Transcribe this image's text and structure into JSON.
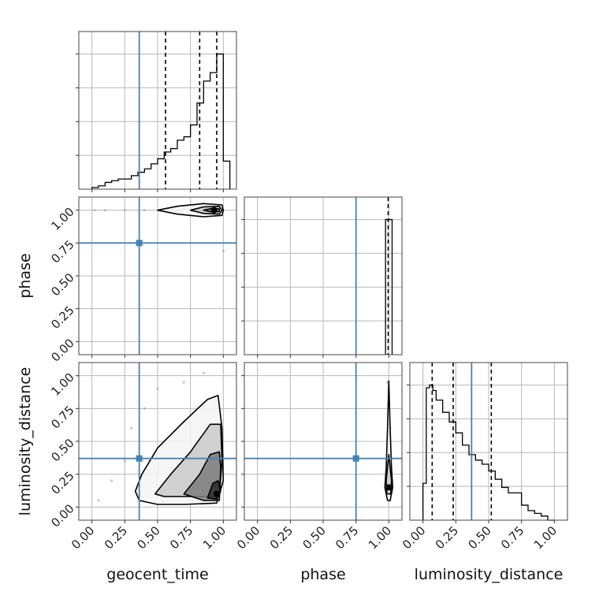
{
  "chart_data": {
    "type": "corner",
    "parameters": [
      "geocent_time",
      "phase",
      "luminosity_distance"
    ],
    "xlabels": [
      "geocent_time",
      "phase",
      "luminosity_distance"
    ],
    "ylabels": [
      "",
      "phase",
      "luminosity_distance"
    ],
    "ticks": [
      0.0,
      0.25,
      0.5,
      0.75,
      1.0
    ],
    "tick_labels": [
      "0.00",
      "0.25",
      "0.50",
      "0.75",
      "1.00"
    ],
    "axis_range": [
      -0.1,
      1.1
    ],
    "grid": true,
    "truths": {
      "geocent_time": 0.36,
      "phase": 0.75,
      "luminosity_distance": 0.37,
      "color": "#4682b4"
    },
    "quantiles": {
      "geocent_time": [
        0.56,
        0.82,
        0.95
      ],
      "phase": [
        0.995
      ],
      "luminosity_distance": [
        0.07,
        0.23,
        0.52
      ]
    },
    "histograms": {
      "geocent_time": {
        "bin_edges": [
          0.0,
          0.05,
          0.1,
          0.15,
          0.2,
          0.25,
          0.3,
          0.35,
          0.4,
          0.45,
          0.5,
          0.55,
          0.6,
          0.65,
          0.7,
          0.75,
          0.8,
          0.85,
          0.9,
          0.95,
          1.0,
          1.05
        ],
        "counts": [
          0.005,
          0.01,
          0.02,
          0.025,
          0.03,
          0.03,
          0.04,
          0.05,
          0.06,
          0.075,
          0.09,
          0.11,
          0.12,
          0.145,
          0.155,
          0.19,
          0.255,
          0.32,
          0.345,
          0.4,
          0.083
        ]
      },
      "phase": {
        "bin_edges": [
          0.975,
          1.0,
          1.025
        ],
        "counts": [
          1.0,
          1.0
        ]
      },
      "luminosity_distance": {
        "bin_edges": [
          0.0,
          0.025,
          0.05,
          0.075,
          0.1,
          0.15,
          0.2,
          0.25,
          0.3,
          0.35,
          0.4,
          0.45,
          0.5,
          0.55,
          0.6,
          0.65,
          0.7,
          0.75,
          0.8,
          0.85,
          0.9,
          0.95,
          1.0
        ],
        "counts": [
          0.27,
          0.97,
          0.99,
          0.95,
          0.88,
          0.79,
          0.72,
          0.64,
          0.55,
          0.48,
          0.44,
          0.41,
          0.36,
          0.3,
          0.24,
          0.2,
          0.2,
          0.11,
          0.07,
          0.05,
          0.03,
          0.0
        ]
      }
    },
    "density": {
      "phase_vs_geocent_time": {
        "x": "geocent_time",
        "y": "phase",
        "mode_x": 0.93,
        "mode_y": 1.0,
        "samples": [
          [
            0.02,
            1.0
          ],
          [
            0.1,
            1.0
          ],
          [
            0.25,
            1.0
          ],
          [
            0.4,
            1.0
          ],
          [
            0.55,
            1.0
          ],
          [
            0.65,
            1.0
          ],
          [
            0.7,
            1.01
          ],
          [
            0.75,
            0.99
          ],
          [
            0.85,
            1.0
          ],
          [
            0.95,
            1.01
          ],
          [
            1.0,
            0.69
          ]
        ],
        "contours": [
          [
            [
              0.5,
              1.0
            ],
            [
              0.65,
              1.03
            ],
            [
              0.85,
              1.05
            ],
            [
              0.99,
              1.04
            ],
            [
              1.0,
              1.0
            ],
            [
              0.99,
              0.96
            ],
            [
              0.85,
              0.95
            ],
            [
              0.65,
              0.97
            ],
            [
              0.5,
              1.0
            ]
          ],
          [
            [
              0.75,
              1.0
            ],
            [
              0.85,
              1.025
            ],
            [
              0.97,
              1.03
            ],
            [
              0.99,
              1.0
            ],
            [
              0.97,
              0.97
            ],
            [
              0.85,
              0.975
            ],
            [
              0.75,
              1.0
            ]
          ],
          [
            [
              0.85,
              1.0
            ],
            [
              0.92,
              1.015
            ],
            [
              0.97,
              1.01
            ],
            [
              0.97,
              0.99
            ],
            [
              0.92,
              0.985
            ],
            [
              0.85,
              1.0
            ]
          ]
        ]
      },
      "luminosity_distance_vs_geocent_time": {
        "x": "geocent_time",
        "y": "luminosity_distance",
        "mode_x": 0.95,
        "mode_y": 0.1,
        "samples": [
          [
            0.05,
            0.05
          ],
          [
            0.15,
            0.2
          ],
          [
            0.25,
            0.35
          ],
          [
            0.3,
            0.6
          ],
          [
            0.4,
            0.75
          ],
          [
            0.5,
            0.9
          ],
          [
            0.7,
            0.95
          ],
          [
            0.85,
            1.02
          ],
          [
            0.95,
            0.8
          ],
          [
            0.6,
            0.3
          ],
          [
            0.75,
            0.1
          ]
        ],
        "contours": [
          [
            [
              0.33,
              0.12
            ],
            [
              0.36,
              0.05
            ],
            [
              0.5,
              0.02
            ],
            [
              0.7,
              0.02
            ],
            [
              0.95,
              0.03
            ],
            [
              1.0,
              0.2
            ],
            [
              0.99,
              0.6
            ],
            [
              0.96,
              0.85
            ],
            [
              0.88,
              0.82
            ],
            [
              0.7,
              0.65
            ],
            [
              0.5,
              0.45
            ],
            [
              0.38,
              0.25
            ],
            [
              0.33,
              0.12
            ]
          ],
          [
            [
              0.48,
              0.1
            ],
            [
              0.55,
              0.08
            ],
            [
              0.75,
              0.08
            ],
            [
              0.97,
              0.08
            ],
            [
              0.99,
              0.35
            ],
            [
              0.98,
              0.63
            ],
            [
              0.9,
              0.63
            ],
            [
              0.75,
              0.42
            ],
            [
              0.6,
              0.25
            ],
            [
              0.48,
              0.1
            ]
          ],
          [
            [
              0.7,
              0.1
            ],
            [
              0.85,
              0.05
            ],
            [
              0.97,
              0.05
            ],
            [
              0.98,
              0.3
            ],
            [
              0.97,
              0.42
            ],
            [
              0.9,
              0.4
            ],
            [
              0.82,
              0.25
            ],
            [
              0.7,
              0.1
            ]
          ],
          [
            [
              0.88,
              0.07
            ],
            [
              0.95,
              0.06
            ],
            [
              0.98,
              0.12
            ],
            [
              0.96,
              0.2
            ],
            [
              0.92,
              0.18
            ],
            [
              0.88,
              0.07
            ]
          ]
        ]
      },
      "luminosity_distance_vs_phase": {
        "x": "phase",
        "y": "luminosity_distance",
        "mode_x": 1.0,
        "mode_y": 0.15,
        "samples": [
          [
            0.99,
            0.95
          ],
          [
            1.0,
            0.8
          ],
          [
            1.01,
            0.6
          ],
          [
            0.99,
            0.45
          ],
          [
            1.0,
            0.3
          ],
          [
            1.01,
            0.05
          ]
        ],
        "contours": [
          [
            [
              0.99,
              0.05
            ],
            [
              0.97,
              0.15
            ],
            [
              0.98,
              0.3
            ],
            [
              0.99,
              0.6
            ],
            [
              1.0,
              0.96
            ],
            [
              1.01,
              0.6
            ],
            [
              1.02,
              0.3
            ],
            [
              1.03,
              0.15
            ],
            [
              1.01,
              0.05
            ],
            [
              0.99,
              0.05
            ]
          ],
          [
            [
              0.985,
              0.1
            ],
            [
              0.98,
              0.2
            ],
            [
              1.0,
              0.4
            ],
            [
              1.02,
              0.2
            ],
            [
              1.015,
              0.1
            ],
            [
              0.985,
              0.1
            ]
          ]
        ]
      }
    }
  }
}
